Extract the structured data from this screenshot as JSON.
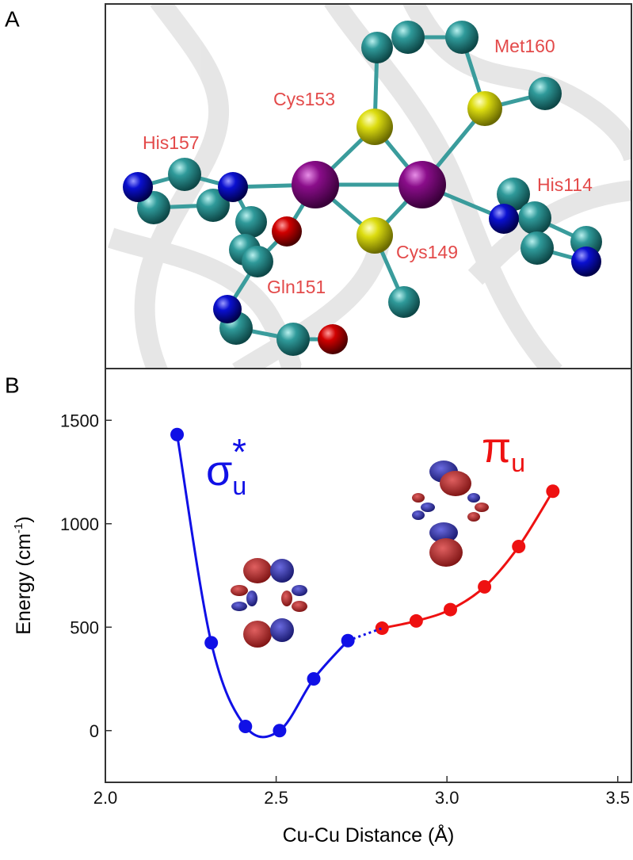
{
  "panel_labels": [
    "A",
    "B"
  ],
  "structure": {
    "residue_labels": [
      "Met160",
      "Cys153",
      "His157",
      "His114",
      "Cys149",
      "Gln151"
    ]
  },
  "chart_data": {
    "type": "line",
    "xlabel": "Cu-Cu Distance (Å)",
    "ylabel": {
      "text": "Energy (cm",
      "sup": "-1",
      "tail": ")"
    },
    "xlim": [
      2.0,
      3.54
    ],
    "xticks": [
      {
        "value": 2.0,
        "label": "2.0"
      },
      2.5,
      {
        "value": 3.0,
        "label": "3.0"
      },
      3.5
    ],
    "ylim": [
      -250,
      1750
    ],
    "yticks": [
      0,
      500,
      1000,
      1500
    ],
    "series": [
      {
        "color": "#1010e6",
        "x": [
          2.21,
          2.31,
          2.41,
          2.51,
          2.61,
          2.71
        ],
        "values": [
          1431,
          425,
          20,
          0,
          250,
          435
        ]
      },
      {
        "color": "#ee1111",
        "x": [
          2.81,
          2.91,
          3.01,
          3.11,
          3.21,
          3.31
        ],
        "values": [
          495,
          530,
          585,
          695,
          890,
          1157
        ]
      }
    ],
    "annotations": [
      {
        "text": "σ",
        "sub": "u",
        "sup": "*",
        "color": "#1010e6"
      },
      {
        "text": "π",
        "sub": "u",
        "color": "#ee1111"
      }
    ]
  }
}
